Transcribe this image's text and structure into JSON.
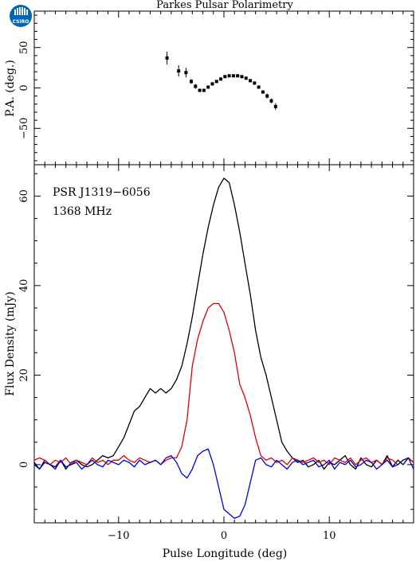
{
  "logo": {
    "text": "CSIRO",
    "color": "#0066b3"
  },
  "chart_data": [
    {
      "type": "scatter",
      "title": "Parkes Pulsar Polarimetry",
      "xlabel": "",
      "ylabel": "P.A. (deg.)",
      "xlim": [
        -18,
        18
      ],
      "ylim": [
        -95,
        95
      ],
      "yticks": [
        50,
        0,
        -50
      ],
      "series": [
        {
          "color": "#000000",
          "error_bars": true,
          "points": [
            {
              "x": -5.4,
              "y": 37,
              "err": 8
            },
            {
              "x": -4.3,
              "y": 21,
              "err": 7
            },
            {
              "x": -3.6,
              "y": 19,
              "err": 6
            },
            {
              "x": -3.1,
              "y": 8,
              "err": 3
            },
            {
              "x": -2.7,
              "y": 2,
              "err": 3
            },
            {
              "x": -2.3,
              "y": -3,
              "err": 2
            },
            {
              "x": -1.9,
              "y": -3,
              "err": 2
            },
            {
              "x": -1.5,
              "y": 1,
              "err": 2
            },
            {
              "x": -1.1,
              "y": 5,
              "err": 2
            },
            {
              "x": -0.7,
              "y": 8,
              "err": 1
            },
            {
              "x": -0.3,
              "y": 11,
              "err": 1
            },
            {
              "x": 0.1,
              "y": 14,
              "err": 1
            },
            {
              "x": 0.5,
              "y": 15,
              "err": 1
            },
            {
              "x": 0.9,
              "y": 15,
              "err": 1
            },
            {
              "x": 1.3,
              "y": 15,
              "err": 1
            },
            {
              "x": 1.7,
              "y": 14,
              "err": 1
            },
            {
              "x": 2.1,
              "y": 12,
              "err": 1
            },
            {
              "x": 2.5,
              "y": 9,
              "err": 2
            },
            {
              "x": 2.9,
              "y": 6,
              "err": 2
            },
            {
              "x": 3.3,
              "y": 1,
              "err": 2
            },
            {
              "x": 3.7,
              "y": -5,
              "err": 2
            },
            {
              "x": 4.1,
              "y": -10,
              "err": 3
            },
            {
              "x": 4.5,
              "y": -16,
              "err": 3
            },
            {
              "x": 4.9,
              "y": -23,
              "err": 4
            }
          ]
        }
      ]
    },
    {
      "type": "line",
      "title": "",
      "xlabel": "Pulse Longitude (deg)",
      "ylabel": "Flux Density (mJy)",
      "xlim": [
        -18,
        18
      ],
      "ylim": [
        -13,
        67
      ],
      "xticks": [
        -10,
        0,
        10
      ],
      "yticks": [
        0,
        20,
        40,
        60
      ],
      "annotations": [
        "PSR J1319−6056",
        "1368 MHz"
      ],
      "series": [
        {
          "color": "#000000",
          "x": [
            -18,
            -17.5,
            -17,
            -16.5,
            -16,
            -15.5,
            -15,
            -14.5,
            -14,
            -13.5,
            -13,
            -12.5,
            -12,
            -11.5,
            -11,
            -10.5,
            -10,
            -9.5,
            -9,
            -8.5,
            -8,
            -7.5,
            -7,
            -6.5,
            -6,
            -5.5,
            -5,
            -4.5,
            -4,
            -3.5,
            -3,
            -2.5,
            -2,
            -1.5,
            -1,
            -0.5,
            0,
            0.5,
            1,
            1.5,
            2,
            2.5,
            3,
            3.5,
            4,
            4.5,
            5,
            5.5,
            6,
            6.5,
            7,
            7.5,
            8,
            8.5,
            9,
            9.5,
            10,
            10.5,
            11,
            11.5,
            12,
            12.5,
            13,
            13.5,
            14,
            14.5,
            15,
            15.5,
            16,
            16.5,
            17,
            17.5,
            18
          ],
          "y": [
            0.5,
            -1,
            1,
            0,
            -0.5,
            1,
            -1,
            0.5,
            1,
            0,
            -0.5,
            0,
            1,
            2,
            1.5,
            2,
            4,
            6,
            9,
            12,
            13,
            15,
            17,
            16,
            17,
            16,
            17,
            19,
            22,
            27,
            33,
            40,
            47,
            53,
            58,
            62,
            64,
            63,
            58,
            52,
            45,
            38,
            30,
            24,
            20,
            15,
            10,
            5,
            3,
            1.5,
            0.5,
            1,
            -0.5,
            0,
            1,
            -1,
            0.5,
            0,
            1,
            2,
            0,
            -1,
            1.5,
            0,
            -0.5,
            1,
            0,
            2,
            -0.5,
            1,
            0,
            1.5,
            0.5
          ]
        },
        {
          "color": "#dd0000",
          "x": [
            -18,
            -17.5,
            -17,
            -16.5,
            -16,
            -15.5,
            -15,
            -14.5,
            -14,
            -13.5,
            -13,
            -12.5,
            -12,
            -11.5,
            -11,
            -10.5,
            -10,
            -9.5,
            -9,
            -8.5,
            -8,
            -7.5,
            -7,
            -6.5,
            -6,
            -5.5,
            -5,
            -4.5,
            -4,
            -3.5,
            -3,
            -2.5,
            -2,
            -1.5,
            -1,
            -0.5,
            0,
            0.5,
            1,
            1.5,
            2,
            2.5,
            3,
            3.5,
            4,
            4.5,
            5,
            5.5,
            6,
            6.5,
            7,
            7.5,
            8,
            8.5,
            9,
            9.5,
            10,
            10.5,
            11,
            11.5,
            12,
            12.5,
            13,
            13.5,
            14,
            14.5,
            15,
            15.5,
            16,
            16.5,
            17,
            17.5,
            18
          ],
          "y": [
            1,
            1.5,
            1,
            0,
            1,
            0.5,
            1.5,
            0,
            1,
            0.5,
            0,
            1.5,
            0.5,
            1,
            0,
            1,
            1,
            2,
            1,
            0.5,
            1.5,
            1,
            0.5,
            1,
            0,
            1,
            1.5,
            1.5,
            4,
            10,
            22,
            28,
            32,
            35,
            36,
            36,
            34,
            30,
            25,
            18,
            15,
            11,
            6,
            2,
            1,
            1.5,
            0.5,
            1,
            0,
            1.5,
            1,
            0.5,
            1,
            1.5,
            0.5,
            1,
            0,
            1.5,
            1,
            0.5,
            1.5,
            0,
            1,
            1.5,
            0.5,
            1,
            0,
            1.5,
            1,
            0,
            1,
            1.5,
            0.5
          ]
        },
        {
          "color": "#0000dd",
          "x": [
            -18,
            -17.5,
            -17,
            -16.5,
            -16,
            -15.5,
            -15,
            -14.5,
            -14,
            -13.5,
            -13,
            -12.5,
            -12,
            -11.5,
            -11,
            -10.5,
            -10,
            -9.5,
            -9,
            -8.5,
            -8,
            -7.5,
            -7,
            -6.5,
            -6,
            -5.5,
            -5,
            -4.5,
            -4,
            -3.5,
            -3,
            -2.5,
            -2,
            -1.5,
            -1,
            -0.5,
            0,
            0.5,
            1,
            1.5,
            2,
            2.5,
            3,
            3.5,
            4,
            4.5,
            5,
            5.5,
            6,
            6.5,
            7,
            7.5,
            8,
            8.5,
            9,
            9.5,
            10,
            10.5,
            11,
            11.5,
            12,
            12.5,
            13,
            13.5,
            14,
            14.5,
            15,
            15.5,
            16,
            16.5,
            17,
            17.5,
            18
          ],
          "y": [
            0,
            -1,
            0.5,
            0,
            -1,
            1,
            -0.5,
            0,
            0.5,
            -1,
            0,
            1,
            0,
            -0.5,
            1,
            0.5,
            0,
            1,
            0.5,
            -0.5,
            1,
            0,
            0.5,
            1,
            0,
            1.5,
            2,
            0.5,
            -2,
            -3,
            -1,
            2,
            3,
            3.5,
            0,
            -5,
            -10,
            -11,
            -12,
            -11.5,
            -9,
            -4,
            1,
            1.5,
            0,
            -0.5,
            1,
            0,
            -1,
            0.5,
            1,
            0,
            0.5,
            1,
            -0.5,
            0,
            1,
            -1,
            0.5,
            0,
            1,
            -0.5,
            0,
            1,
            0.5,
            -1,
            0,
            1,
            -0.5,
            0,
            1,
            1.5,
            -1
          ]
        }
      ]
    }
  ]
}
